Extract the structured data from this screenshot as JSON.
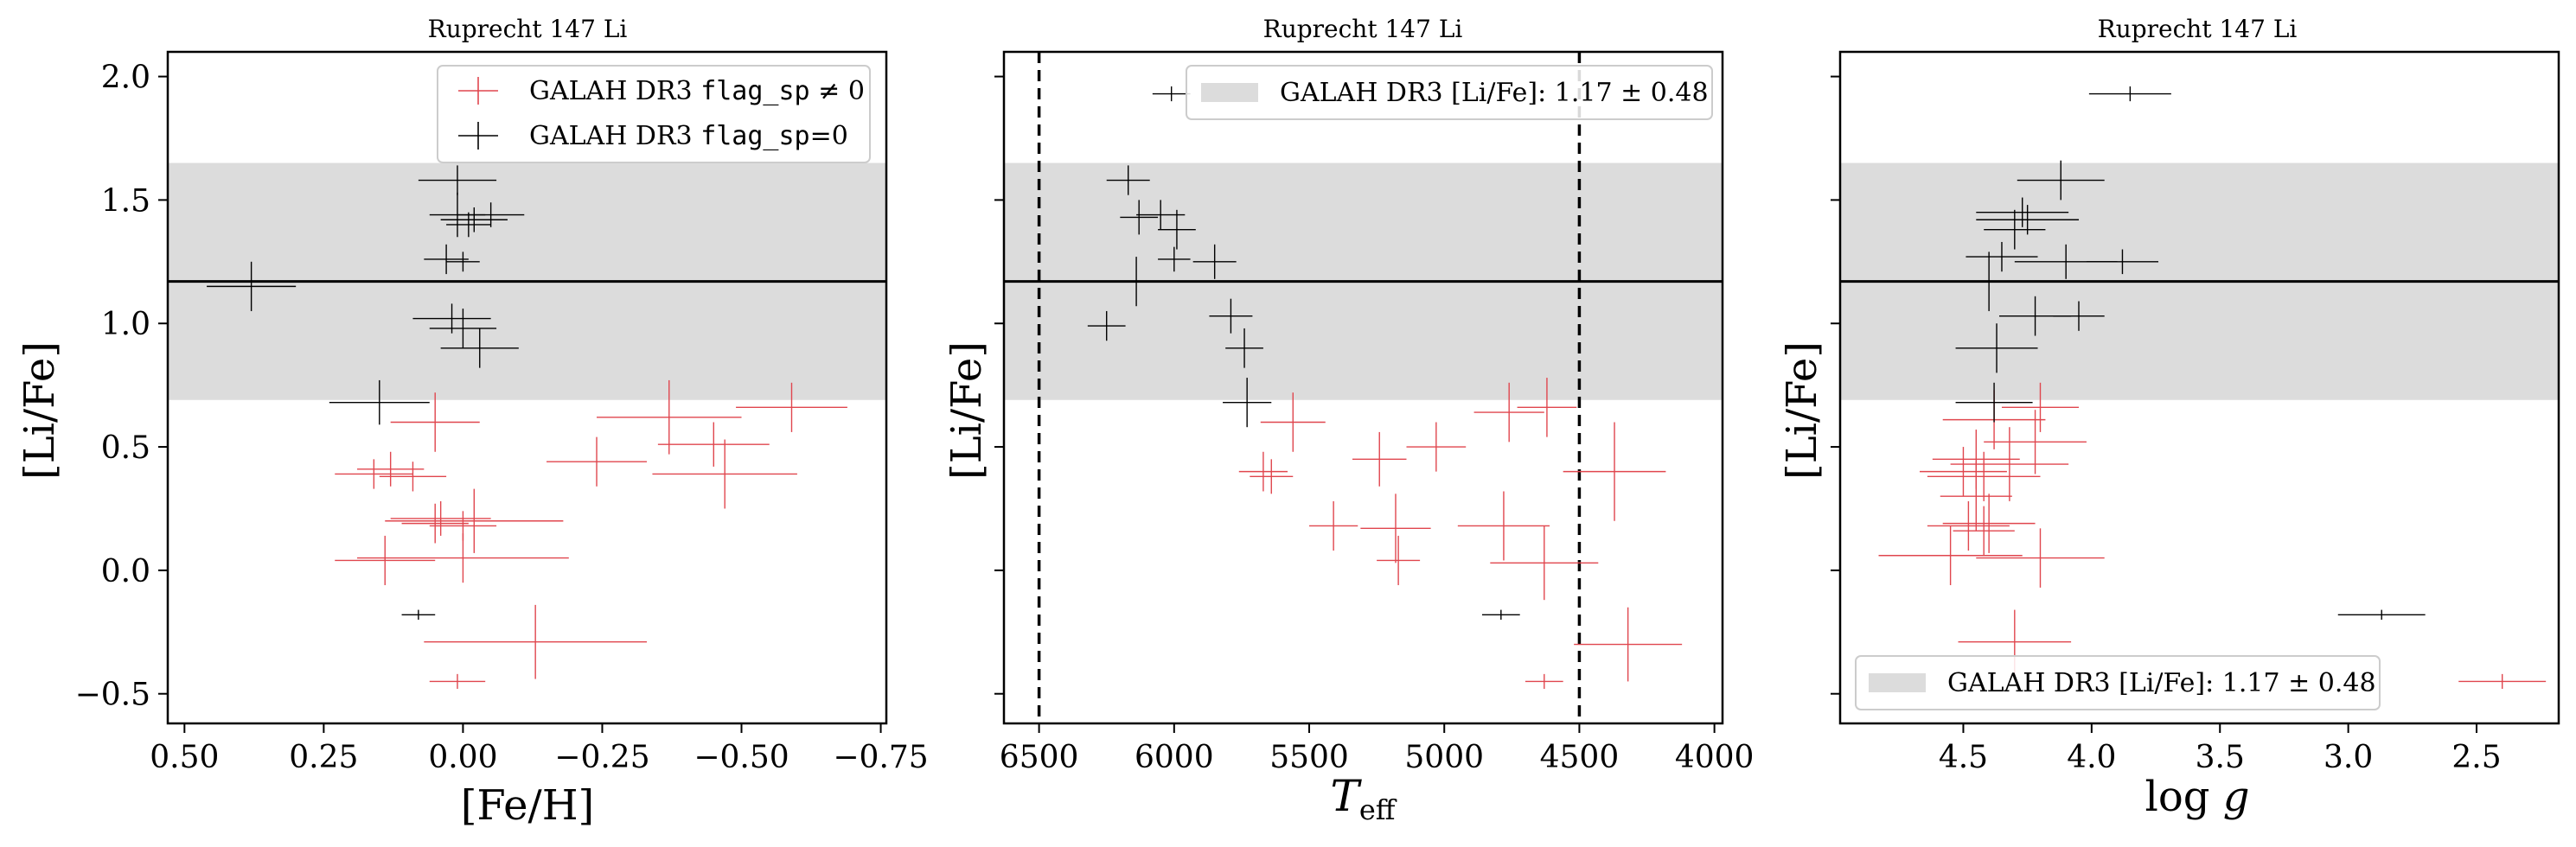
{
  "chart_data": [
    {
      "type": "scatter",
      "title": "Ruprecht 147 Li",
      "xlabel": "[Fe/H]",
      "ylabel": "[Li/Fe]",
      "xlim": [
        0.53,
        -0.76
      ],
      "ylim": [
        -0.62,
        2.1
      ],
      "x_inverted": true,
      "xticks": [
        0.5,
        0.25,
        0.0,
        -0.25,
        -0.5,
        -0.75
      ],
      "xtick_labels": [
        "0.50",
        "0.25",
        "0.00",
        "−0.25",
        "−0.50",
        "−0.75"
      ],
      "yticks": [
        -0.5,
        0.0,
        0.5,
        1.0,
        1.5,
        2.0
      ],
      "ytick_labels": [
        "−0.5",
        "0.0",
        "0.5",
        "1.0",
        "1.5",
        "2.0"
      ],
      "band": {
        "center": 1.17,
        "low": 0.69,
        "high": 1.65
      },
      "hline": 1.17,
      "legend": {
        "position": "top-right",
        "entries": [
          {
            "prefix": "GALAH DR3 ",
            "code": "flag_sp",
            "suffix": " ≠ 0",
            "color": "#e0464e"
          },
          {
            "prefix": "GALAH DR3 ",
            "code": "flag_sp",
            "suffix": "=0",
            "color": "#000000"
          }
        ]
      },
      "series": [
        {
          "name": "GALAH DR3 flag_sp ≠ 0",
          "color": "#e0464e",
          "points": [
            {
              "x": 0.05,
              "y": 0.6,
              "xerr": 0.08,
              "yerr": 0.12
            },
            {
              "x": 0.16,
              "y": 0.39,
              "xerr": 0.07,
              "yerr": 0.06
            },
            {
              "x": 0.13,
              "y": 0.41,
              "xerr": 0.06,
              "yerr": 0.07
            },
            {
              "x": 0.09,
              "y": 0.38,
              "xerr": 0.06,
              "yerr": 0.06
            },
            {
              "x": -0.24,
              "y": 0.44,
              "xerr": 0.09,
              "yerr": 0.1
            },
            {
              "x": -0.37,
              "y": 0.62,
              "xerr": 0.13,
              "yerr": 0.15
            },
            {
              "x": -0.45,
              "y": 0.51,
              "xerr": 0.1,
              "yerr": 0.09
            },
            {
              "x": -0.59,
              "y": 0.66,
              "xerr": 0.1,
              "yerr": 0.1
            },
            {
              "x": -0.47,
              "y": 0.39,
              "xerr": 0.13,
              "yerr": 0.14
            },
            {
              "x": 0.04,
              "y": 0.21,
              "xerr": 0.09,
              "yerr": 0.07
            },
            {
              "x": 0.05,
              "y": 0.19,
              "xerr": 0.06,
              "yerr": 0.08
            },
            {
              "x": -0.02,
              "y": 0.2,
              "xerr": 0.16,
              "yerr": 0.13
            },
            {
              "x": 0.0,
              "y": 0.18,
              "xerr": 0.06,
              "yerr": 0.06
            },
            {
              "x": 0.0,
              "y": 0.05,
              "xerr": 0.19,
              "yerr": 0.1
            },
            {
              "x": 0.14,
              "y": 0.04,
              "xerr": 0.09,
              "yerr": 0.1
            },
            {
              "x": -0.13,
              "y": -0.29,
              "xerr": 0.2,
              "yerr": 0.15
            },
            {
              "x": 0.01,
              "y": -0.45,
              "xerr": 0.05,
              "yerr": 0.03
            }
          ]
        },
        {
          "name": "GALAH DR3 flag_sp=0",
          "color": "#000000",
          "points": [
            {
              "x": 0.01,
              "y": 1.58,
              "xerr": 0.07,
              "yerr": 0.06
            },
            {
              "x": 0.01,
              "y": 1.44,
              "xerr": 0.05,
              "yerr": 0.09
            },
            {
              "x": -0.02,
              "y": 1.42,
              "xerr": 0.06,
              "yerr": 0.05
            },
            {
              "x": -0.05,
              "y": 1.44,
              "xerr": 0.06,
              "yerr": 0.05
            },
            {
              "x": -0.01,
              "y": 1.4,
              "xerr": 0.04,
              "yerr": 0.05
            },
            {
              "x": 0.03,
              "y": 1.26,
              "xerr": 0.04,
              "yerr": 0.06
            },
            {
              "x": 0.0,
              "y": 1.25,
              "xerr": 0.03,
              "yerr": 0.04
            },
            {
              "x": 0.38,
              "y": 1.15,
              "xerr": 0.08,
              "yerr": 0.1
            },
            {
              "x": 0.02,
              "y": 1.02,
              "xerr": 0.07,
              "yerr": 0.06
            },
            {
              "x": 0.0,
              "y": 0.98,
              "xerr": 0.06,
              "yerr": 0.08
            },
            {
              "x": -0.03,
              "y": 0.9,
              "xerr": 0.07,
              "yerr": 0.08
            },
            {
              "x": 0.15,
              "y": 0.68,
              "xerr": 0.09,
              "yerr": 0.09
            },
            {
              "x": 0.08,
              "y": -0.18,
              "xerr": 0.03,
              "yerr": 0.02
            }
          ]
        }
      ]
    },
    {
      "type": "scatter",
      "title": "Ruprecht 147 Li",
      "xlabel": "T_eff",
      "xlabel_main": "T",
      "xlabel_sub": "eff",
      "ylabel": "[Li/Fe]",
      "xlim": [
        6630,
        3970
      ],
      "ylim": [
        -0.62,
        2.1
      ],
      "x_inverted": true,
      "xticks": [
        6500,
        6000,
        5500,
        5000,
        4500,
        4000
      ],
      "xtick_labels": [
        "6500",
        "6000",
        "5500",
        "5000",
        "4500",
        "4000"
      ],
      "yticks": [
        -0.5,
        0.0,
        0.5,
        1.0,
        1.5,
        2.0
      ],
      "ytick_labels": [],
      "band": {
        "center": 1.17,
        "low": 0.69,
        "high": 1.65
      },
      "hline": 1.17,
      "vlines": [
        6500,
        4500
      ],
      "legend": {
        "position": "top-right",
        "entries": [
          {
            "text": "GALAH DR3 [Li/Fe]: 1.17 ± 0.48",
            "color": "#dcdcdc"
          }
        ]
      },
      "series": [
        {
          "name": "GALAH DR3 flag_sp ≠ 0",
          "color": "#e0464e",
          "points": [
            {
              "x": 5560,
              "y": 0.6,
              "xerr": 120,
              "yerr": 0.12
            },
            {
              "x": 5670,
              "y": 0.4,
              "xerr": 90,
              "yerr": 0.08
            },
            {
              "x": 5640,
              "y": 0.38,
              "xerr": 80,
              "yerr": 0.07
            },
            {
              "x": 5240,
              "y": 0.45,
              "xerr": 100,
              "yerr": 0.11
            },
            {
              "x": 5030,
              "y": 0.5,
              "xerr": 110,
              "yerr": 0.1
            },
            {
              "x": 4760,
              "y": 0.64,
              "xerr": 130,
              "yerr": 0.12
            },
            {
              "x": 4620,
              "y": 0.66,
              "xerr": 110,
              "yerr": 0.12
            },
            {
              "x": 4370,
              "y": 0.4,
              "xerr": 190,
              "yerr": 0.2
            },
            {
              "x": 5410,
              "y": 0.18,
              "xerr": 90,
              "yerr": 0.1
            },
            {
              "x": 5180,
              "y": 0.17,
              "xerr": 130,
              "yerr": 0.14
            },
            {
              "x": 5170,
              "y": 0.04,
              "xerr": 80,
              "yerr": 0.1
            },
            {
              "x": 4780,
              "y": 0.18,
              "xerr": 170,
              "yerr": 0.14
            },
            {
              "x": 4630,
              "y": 0.03,
              "xerr": 200,
              "yerr": 0.15
            },
            {
              "x": 4320,
              "y": -0.3,
              "xerr": 200,
              "yerr": 0.15
            },
            {
              "x": 4630,
              "y": -0.45,
              "xerr": 70,
              "yerr": 0.03
            }
          ]
        },
        {
          "name": "GALAH DR3 flag_sp=0",
          "color": "#000000",
          "points": [
            {
              "x": 6010,
              "y": 1.93,
              "xerr": 70,
              "yerr": 0.03
            },
            {
              "x": 6170,
              "y": 1.58,
              "xerr": 80,
              "yerr": 0.06
            },
            {
              "x": 6130,
              "y": 1.43,
              "xerr": 70,
              "yerr": 0.07
            },
            {
              "x": 6050,
              "y": 1.44,
              "xerr": 90,
              "yerr": 0.06
            },
            {
              "x": 5990,
              "y": 1.38,
              "xerr": 70,
              "yerr": 0.08
            },
            {
              "x": 6000,
              "y": 1.26,
              "xerr": 60,
              "yerr": 0.05
            },
            {
              "x": 5850,
              "y": 1.25,
              "xerr": 80,
              "yerr": 0.07
            },
            {
              "x": 6140,
              "y": 1.17,
              "xerr": 110,
              "yerr": 0.1
            },
            {
              "x": 6250,
              "y": 0.99,
              "xerr": 70,
              "yerr": 0.06
            },
            {
              "x": 5790,
              "y": 1.03,
              "xerr": 80,
              "yerr": 0.07
            },
            {
              "x": 5740,
              "y": 0.9,
              "xerr": 70,
              "yerr": 0.08
            },
            {
              "x": 5730,
              "y": 0.68,
              "xerr": 90,
              "yerr": 0.1
            },
            {
              "x": 4790,
              "y": -0.18,
              "xerr": 70,
              "yerr": 0.02
            }
          ]
        }
      ]
    },
    {
      "type": "scatter",
      "title": "Ruprecht 147 Li",
      "xlabel": "log g",
      "xlabel_main": "log ",
      "xlabel_italic": "g",
      "ylabel": "[Li/Fe]",
      "xlim": [
        4.98,
        2.18
      ],
      "ylim": [
        -0.62,
        2.1
      ],
      "x_inverted": true,
      "xticks": [
        4.5,
        4.0,
        3.5,
        3.0,
        2.5
      ],
      "xtick_labels": [
        "4.5",
        "4.0",
        "3.5",
        "3.0",
        "2.5"
      ],
      "yticks": [
        -0.5,
        0.0,
        0.5,
        1.0,
        1.5,
        2.0
      ],
      "ytick_labels": [],
      "band": {
        "center": 1.17,
        "low": 0.69,
        "high": 1.65
      },
      "hline": 1.17,
      "legend": {
        "position": "bottom-left",
        "entries": [
          {
            "text": "GALAH DR3 [Li/Fe]: 1.17 ± 0.48",
            "color": "#dcdcdc"
          }
        ]
      },
      "series": [
        {
          "name": "GALAH DR3 flag_sp ≠ 0",
          "color": "#e0464e",
          "points": [
            {
              "x": 4.2,
              "y": 0.66,
              "xerr": 0.15,
              "yerr": 0.1
            },
            {
              "x": 4.38,
              "y": 0.61,
              "xerr": 0.2,
              "yerr": 0.12
            },
            {
              "x": 4.22,
              "y": 0.52,
              "xerr": 0.2,
              "yerr": 0.13
            },
            {
              "x": 4.45,
              "y": 0.45,
              "xerr": 0.17,
              "yerr": 0.12
            },
            {
              "x": 4.32,
              "y": 0.43,
              "xerr": 0.23,
              "yerr": 0.15
            },
            {
              "x": 4.5,
              "y": 0.4,
              "xerr": 0.17,
              "yerr": 0.1
            },
            {
              "x": 4.42,
              "y": 0.38,
              "xerr": 0.22,
              "yerr": 0.1
            },
            {
              "x": 4.45,
              "y": 0.3,
              "xerr": 0.14,
              "yerr": 0.14
            },
            {
              "x": 4.4,
              "y": 0.19,
              "xerr": 0.18,
              "yerr": 0.12
            },
            {
              "x": 4.48,
              "y": 0.18,
              "xerr": 0.16,
              "yerr": 0.1
            },
            {
              "x": 4.42,
              "y": 0.16,
              "xerr": 0.12,
              "yerr": 0.1
            },
            {
              "x": 4.55,
              "y": 0.06,
              "xerr": 0.28,
              "yerr": 0.12
            },
            {
              "x": 4.2,
              "y": 0.05,
              "xerr": 0.25,
              "yerr": 0.12
            },
            {
              "x": 4.3,
              "y": -0.29,
              "xerr": 0.22,
              "yerr": 0.13
            },
            {
              "x": 2.4,
              "y": -0.45,
              "xerr": 0.17,
              "yerr": 0.03
            }
          ]
        },
        {
          "name": "GALAH DR3 flag_sp=0",
          "color": "#000000",
          "points": [
            {
              "x": 3.85,
              "y": 1.93,
              "xerr": 0.16,
              "yerr": 0.03
            },
            {
              "x": 4.12,
              "y": 1.58,
              "xerr": 0.17,
              "yerr": 0.08
            },
            {
              "x": 4.27,
              "y": 1.45,
              "xerr": 0.18,
              "yerr": 0.06
            },
            {
              "x": 4.25,
              "y": 1.42,
              "xerr": 0.2,
              "yerr": 0.06
            },
            {
              "x": 4.3,
              "y": 1.38,
              "xerr": 0.12,
              "yerr": 0.08
            },
            {
              "x": 4.35,
              "y": 1.27,
              "xerr": 0.14,
              "yerr": 0.06
            },
            {
              "x": 4.1,
              "y": 1.25,
              "xerr": 0.2,
              "yerr": 0.07
            },
            {
              "x": 3.88,
              "y": 1.25,
              "xerr": 0.14,
              "yerr": 0.05
            },
            {
              "x": 4.4,
              "y": 1.17,
              "xerr": 0.1,
              "yerr": 0.12
            },
            {
              "x": 4.22,
              "y": 1.03,
              "xerr": 0.14,
              "yerr": 0.08
            },
            {
              "x": 4.05,
              "y": 1.03,
              "xerr": 0.1,
              "yerr": 0.06
            },
            {
              "x": 4.37,
              "y": 0.9,
              "xerr": 0.16,
              "yerr": 0.1
            },
            {
              "x": 4.38,
              "y": 0.68,
              "xerr": 0.15,
              "yerr": 0.08
            },
            {
              "x": 2.87,
              "y": -0.18,
              "xerr": 0.17,
              "yerr": 0.02
            }
          ]
        }
      ]
    }
  ]
}
